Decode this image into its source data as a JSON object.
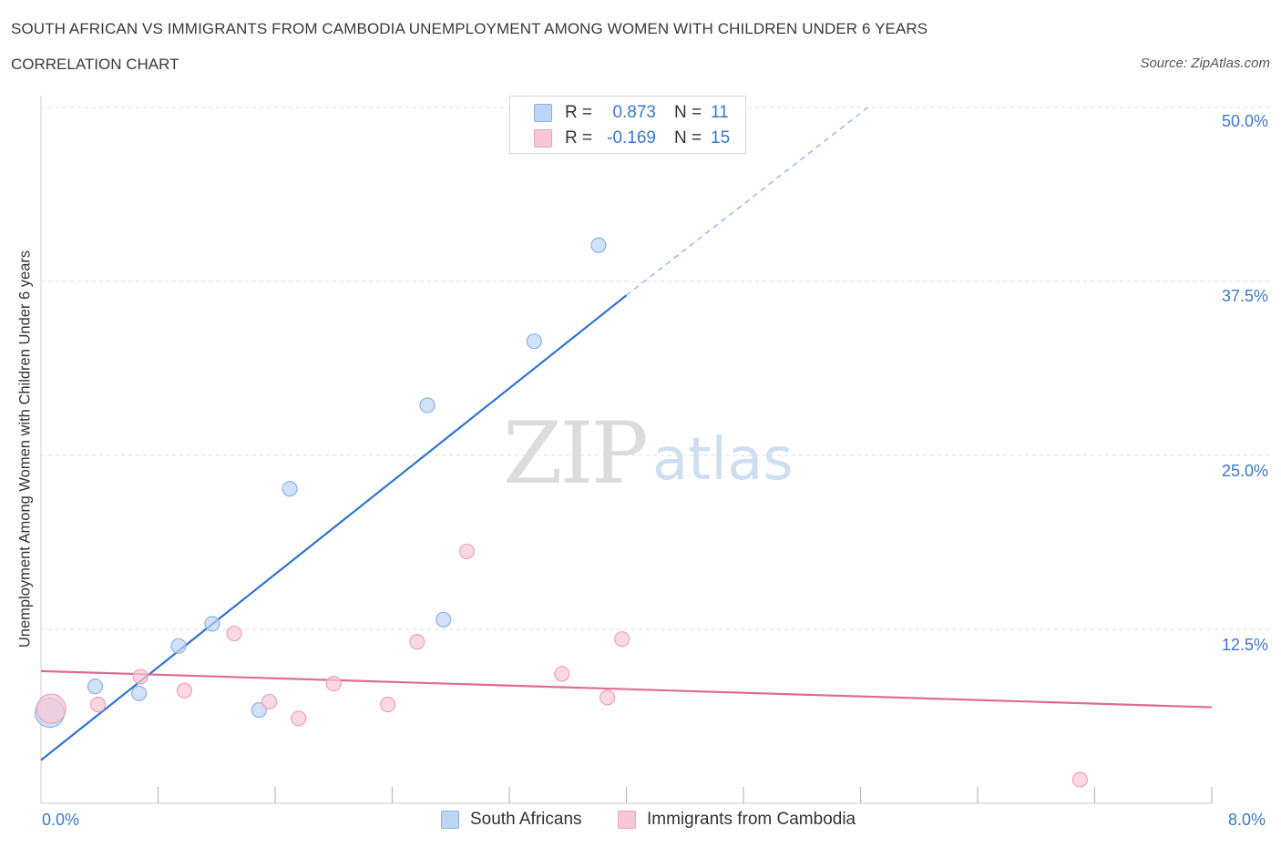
{
  "header": {
    "title": "SOUTH AFRICAN VS IMMIGRANTS FROM CAMBODIA UNEMPLOYMENT AMONG WOMEN WITH CHILDREN UNDER 6 YEARS",
    "subtitle": "CORRELATION CHART",
    "source": "Source: ZipAtlas.com"
  },
  "watermark": {
    "zip": "ZIP",
    "atlas": "atlas"
  },
  "legend_top": {
    "rows": [
      {
        "r_label": "R =",
        "r_value": "0.873",
        "n_label": "N =",
        "n_value": "11"
      },
      {
        "r_label": "R =",
        "r_value": "-0.169",
        "n_label": "N =",
        "n_value": "15"
      }
    ]
  },
  "legend_bottom": [
    "South Africans",
    "Immigrants from Cambodia"
  ],
  "colors": {
    "blue_fill": "#bcd4f5",
    "blue_stroke": "#8fb2e3",
    "blue_line": "#2f74d0",
    "pink_fill": "#f8c7d6",
    "pink_stroke": "#eea3ba",
    "pink_line": "#e06b93",
    "tick_text": "#3a78c8",
    "grid": "#dddddd"
  },
  "chart_data": {
    "type": "scatter",
    "title": "SOUTH AFRICAN VS IMMIGRANTS FROM CAMBODIA UNEMPLOYMENT AMONG WOMEN WITH CHILDREN UNDER 6 YEARS",
    "xlabel": "",
    "ylabel": "Unemployment Among Women with Children Under 6 years",
    "xlim": [
      0,
      8
    ],
    "ylim": [
      0,
      50
    ],
    "x_tick_labels": [
      "0.0%",
      "8.0%"
    ],
    "y_ticks": [
      12.5,
      25,
      37.5,
      50
    ],
    "y_tick_labels": [
      "12.5%",
      "25.0%",
      "37.5%",
      "50.0%"
    ],
    "grid": true,
    "legend_position": "bottom",
    "series": [
      {
        "name": "South Africans",
        "points": [
          {
            "x": 0.06,
            "y": 6.5,
            "size": "large"
          },
          {
            "x": 0.37,
            "y": 8.4
          },
          {
            "x": 0.67,
            "y": 7.9
          },
          {
            "x": 0.94,
            "y": 11.3
          },
          {
            "x": 1.17,
            "y": 12.9
          },
          {
            "x": 1.49,
            "y": 6.7
          },
          {
            "x": 1.7,
            "y": 22.6
          },
          {
            "x": 2.64,
            "y": 28.6
          },
          {
            "x": 2.75,
            "y": 13.2
          },
          {
            "x": 3.37,
            "y": 33.2
          },
          {
            "x": 3.81,
            "y": 40.1
          }
        ],
        "trend": {
          "x0": 0.0,
          "y0": 3.1,
          "x1": 4.0,
          "y1": 36.5,
          "dash_to": {
            "x": 5.65,
            "y": 50.0
          }
        }
      },
      {
        "name": "Immigrants from Cambodia",
        "points": [
          {
            "x": 0.07,
            "y": 6.8,
            "size": "large"
          },
          {
            "x": 0.39,
            "y": 7.1
          },
          {
            "x": 0.68,
            "y": 9.1
          },
          {
            "x": 0.98,
            "y": 8.1
          },
          {
            "x": 1.32,
            "y": 12.2
          },
          {
            "x": 1.56,
            "y": 7.3
          },
          {
            "x": 1.76,
            "y": 6.1
          },
          {
            "x": 2.0,
            "y": 8.6
          },
          {
            "x": 2.37,
            "y": 7.1
          },
          {
            "x": 2.57,
            "y": 11.6
          },
          {
            "x": 2.91,
            "y": 18.1
          },
          {
            "x": 3.56,
            "y": 9.3
          },
          {
            "x": 3.87,
            "y": 7.6
          },
          {
            "x": 3.97,
            "y": 11.8
          },
          {
            "x": 7.1,
            "y": 1.7
          }
        ],
        "trend": {
          "x0": 0.0,
          "y0": 9.5,
          "x1": 8.0,
          "y1": 6.9
        }
      }
    ]
  }
}
